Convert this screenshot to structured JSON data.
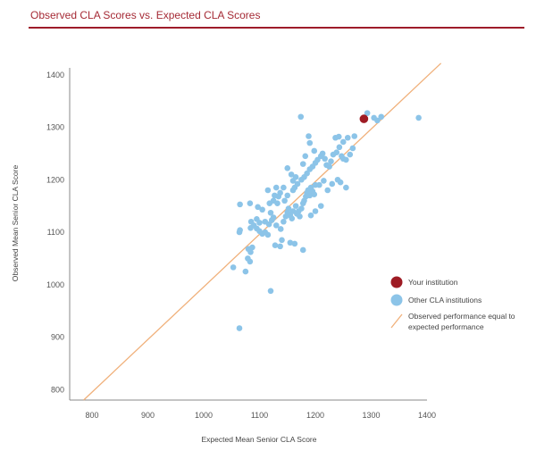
{
  "chart_data": {
    "type": "scatter",
    "title": "Observed CLA Scores vs. Expected CLA Scores",
    "xlabel": "Expected Mean Senior CLA Score",
    "ylabel": "Observed Mean Senior CLA Score",
    "xlim": [
      760,
      1400
    ],
    "ylim": [
      780,
      1420
    ],
    "xticks": [
      800,
      900,
      1000,
      1100,
      1200,
      1300,
      1400
    ],
    "yticks": [
      800,
      900,
      1000,
      1100,
      1200,
      1300,
      1400
    ],
    "grid": false,
    "legend_position": "right",
    "colors": {
      "your_institution": "#9e1b24",
      "other": "#8cc4e8",
      "line": "#f0b07a",
      "title": "#a52a35",
      "rule": "#9e1b2a"
    },
    "series": [
      {
        "name": "Your institution",
        "type": "scatter",
        "points": [
          [
            1287,
            1316
          ]
        ]
      },
      {
        "name": "Other CLA institutions",
        "type": "scatter",
        "points": [
          [
            1064,
            917
          ],
          [
            1120,
            988
          ],
          [
            1053,
            1033
          ],
          [
            1075,
            1025
          ],
          [
            1083,
            1044
          ],
          [
            1079,
            1050
          ],
          [
            1084,
            1062
          ],
          [
            1080,
            1068
          ],
          [
            1087,
            1071
          ],
          [
            1064,
            1100
          ],
          [
            1065,
            1104
          ],
          [
            1084,
            1108
          ],
          [
            1090,
            1113
          ],
          [
            1095,
            1107
          ],
          [
            1100,
            1102
          ],
          [
            1105,
            1097
          ],
          [
            1110,
            1100
          ],
          [
            1115,
            1095
          ],
          [
            1085,
            1120
          ],
          [
            1095,
            1125
          ],
          [
            1100,
            1118
          ],
          [
            1110,
            1120
          ],
          [
            1117,
            1115
          ],
          [
            1122,
            1123
          ],
          [
            1125,
            1128
          ],
          [
            1130,
            1113
          ],
          [
            1128,
            1075
          ],
          [
            1137,
            1073
          ],
          [
            1140,
            1085
          ],
          [
            1155,
            1080
          ],
          [
            1163,
            1078
          ],
          [
            1178,
            1066
          ],
          [
            1138,
            1106
          ],
          [
            1143,
            1120
          ],
          [
            1147,
            1130
          ],
          [
            1150,
            1138
          ],
          [
            1152,
            1145
          ],
          [
            1155,
            1132
          ],
          [
            1158,
            1126
          ],
          [
            1160,
            1140
          ],
          [
            1165,
            1150
          ],
          [
            1167,
            1135
          ],
          [
            1170,
            1140
          ],
          [
            1172,
            1130
          ],
          [
            1175,
            1145
          ],
          [
            1178,
            1155
          ],
          [
            1180,
            1160
          ],
          [
            1183,
            1168
          ],
          [
            1185,
            1175
          ],
          [
            1187,
            1180
          ],
          [
            1190,
            1170
          ],
          [
            1192,
            1185
          ],
          [
            1195,
            1178
          ],
          [
            1198,
            1172
          ],
          [
            1200,
            1190
          ],
          [
            1065,
            1153
          ],
          [
            1083,
            1155
          ],
          [
            1097,
            1148
          ],
          [
            1105,
            1143
          ],
          [
            1118,
            1155
          ],
          [
            1125,
            1160
          ],
          [
            1132,
            1155
          ],
          [
            1134,
            1168
          ],
          [
            1137,
            1175
          ],
          [
            1145,
            1160
          ],
          [
            1150,
            1170
          ],
          [
            1160,
            1180
          ],
          [
            1163,
            1185
          ],
          [
            1168,
            1192
          ],
          [
            1175,
            1200
          ],
          [
            1180,
            1205
          ],
          [
            1185,
            1212
          ],
          [
            1190,
            1220
          ],
          [
            1195,
            1225
          ],
          [
            1200,
            1232
          ],
          [
            1204,
            1238
          ],
          [
            1210,
            1245
          ],
          [
            1213,
            1250
          ],
          [
            1217,
            1240
          ],
          [
            1220,
            1228
          ],
          [
            1225,
            1225
          ],
          [
            1228,
            1235
          ],
          [
            1232,
            1248
          ],
          [
            1238,
            1252
          ],
          [
            1243,
            1262
          ],
          [
            1247,
            1245
          ],
          [
            1250,
            1240
          ],
          [
            1255,
            1238
          ],
          [
            1240,
            1200
          ],
          [
            1245,
            1195
          ],
          [
            1230,
            1192
          ],
          [
            1222,
            1180
          ],
          [
            1215,
            1198
          ],
          [
            1207,
            1190
          ],
          [
            1255,
            1185
          ],
          [
            1150,
            1222
          ],
          [
            1157,
            1210
          ],
          [
            1160,
            1198
          ],
          [
            1165,
            1205
          ],
          [
            1178,
            1230
          ],
          [
            1182,
            1245
          ],
          [
            1190,
            1270
          ],
          [
            1188,
            1283
          ],
          [
            1198,
            1255
          ],
          [
            1236,
            1280
          ],
          [
            1242,
            1282
          ],
          [
            1250,
            1272
          ],
          [
            1258,
            1280
          ],
          [
            1270,
            1283
          ],
          [
            1174,
            1320
          ],
          [
            1293,
            1327
          ],
          [
            1305,
            1318
          ],
          [
            1311,
            1313
          ],
          [
            1318,
            1320
          ],
          [
            1385,
            1318
          ],
          [
            1267,
            1260
          ],
          [
            1262,
            1248
          ],
          [
            1210,
            1150
          ],
          [
            1200,
            1140
          ],
          [
            1192,
            1132
          ],
          [
            1143,
            1185
          ],
          [
            1130,
            1185
          ],
          [
            1127,
            1170
          ],
          [
            1115,
            1180
          ],
          [
            1120,
            1137
          ]
        ]
      },
      {
        "name": "Observed performance equal to expected performance",
        "type": "line",
        "points": [
          [
            785,
            780
          ],
          [
            1425,
            1422
          ]
        ]
      }
    ],
    "legend": [
      {
        "label": "Your institution",
        "kind": "dot-dark"
      },
      {
        "label": "Other CLA institutions",
        "kind": "dot-light"
      },
      {
        "label_line1": "Observed performance equal to",
        "label_line2": "expected performance",
        "kind": "line"
      }
    ]
  }
}
